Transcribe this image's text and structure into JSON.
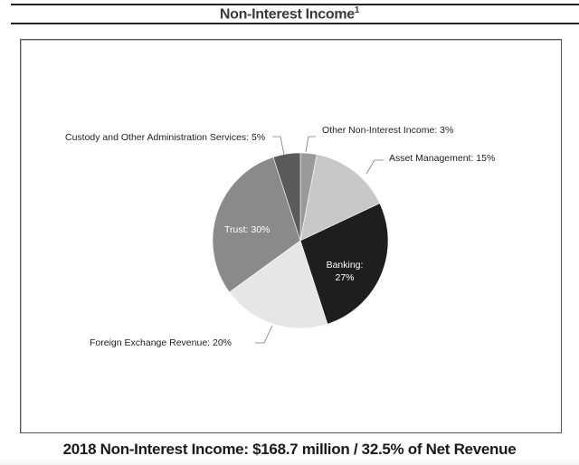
{
  "header": {
    "title": "Non-Interest Income",
    "title_footnote": "1"
  },
  "footer": {
    "summary": "2018 Non-Interest Income: $168.7 million / 32.5% of Net Revenue"
  },
  "chart_data": {
    "type": "pie",
    "title": "Non-Interest Income",
    "start_angle": "12 o'clock, clockwise",
    "categories": [
      "Other Non-Interest Income",
      "Asset Management",
      "Banking",
      "Foreign Exchange Revenue",
      "Trust",
      "Custody and Other Administration Services"
    ],
    "values": [
      3,
      15,
      27,
      20,
      30,
      5
    ],
    "unit": "%",
    "colors": [
      "#9a9a9a",
      "#c8c8c8",
      "#1e1e1e",
      "#e6e6e6",
      "#8a8a8a",
      "#5a5a5a"
    ],
    "labels": [
      {
        "text": "Other Non-Interest Income: 3%",
        "position": "outside"
      },
      {
        "text": "Asset Management: 15%",
        "position": "outside"
      },
      {
        "text_line1": "Banking:",
        "text_line2": "27%",
        "position": "inside"
      },
      {
        "text": "Foreign Exchange Revenue: 20%",
        "position": "outside"
      },
      {
        "text": "Trust: 30%",
        "position": "inside"
      },
      {
        "text": "Custody and Other Administration Services: 5%",
        "position": "outside"
      }
    ],
    "legend": "none",
    "subtitle": "2018 Non-Interest Income: $168.7 million / 32.5% of Net Revenue"
  }
}
